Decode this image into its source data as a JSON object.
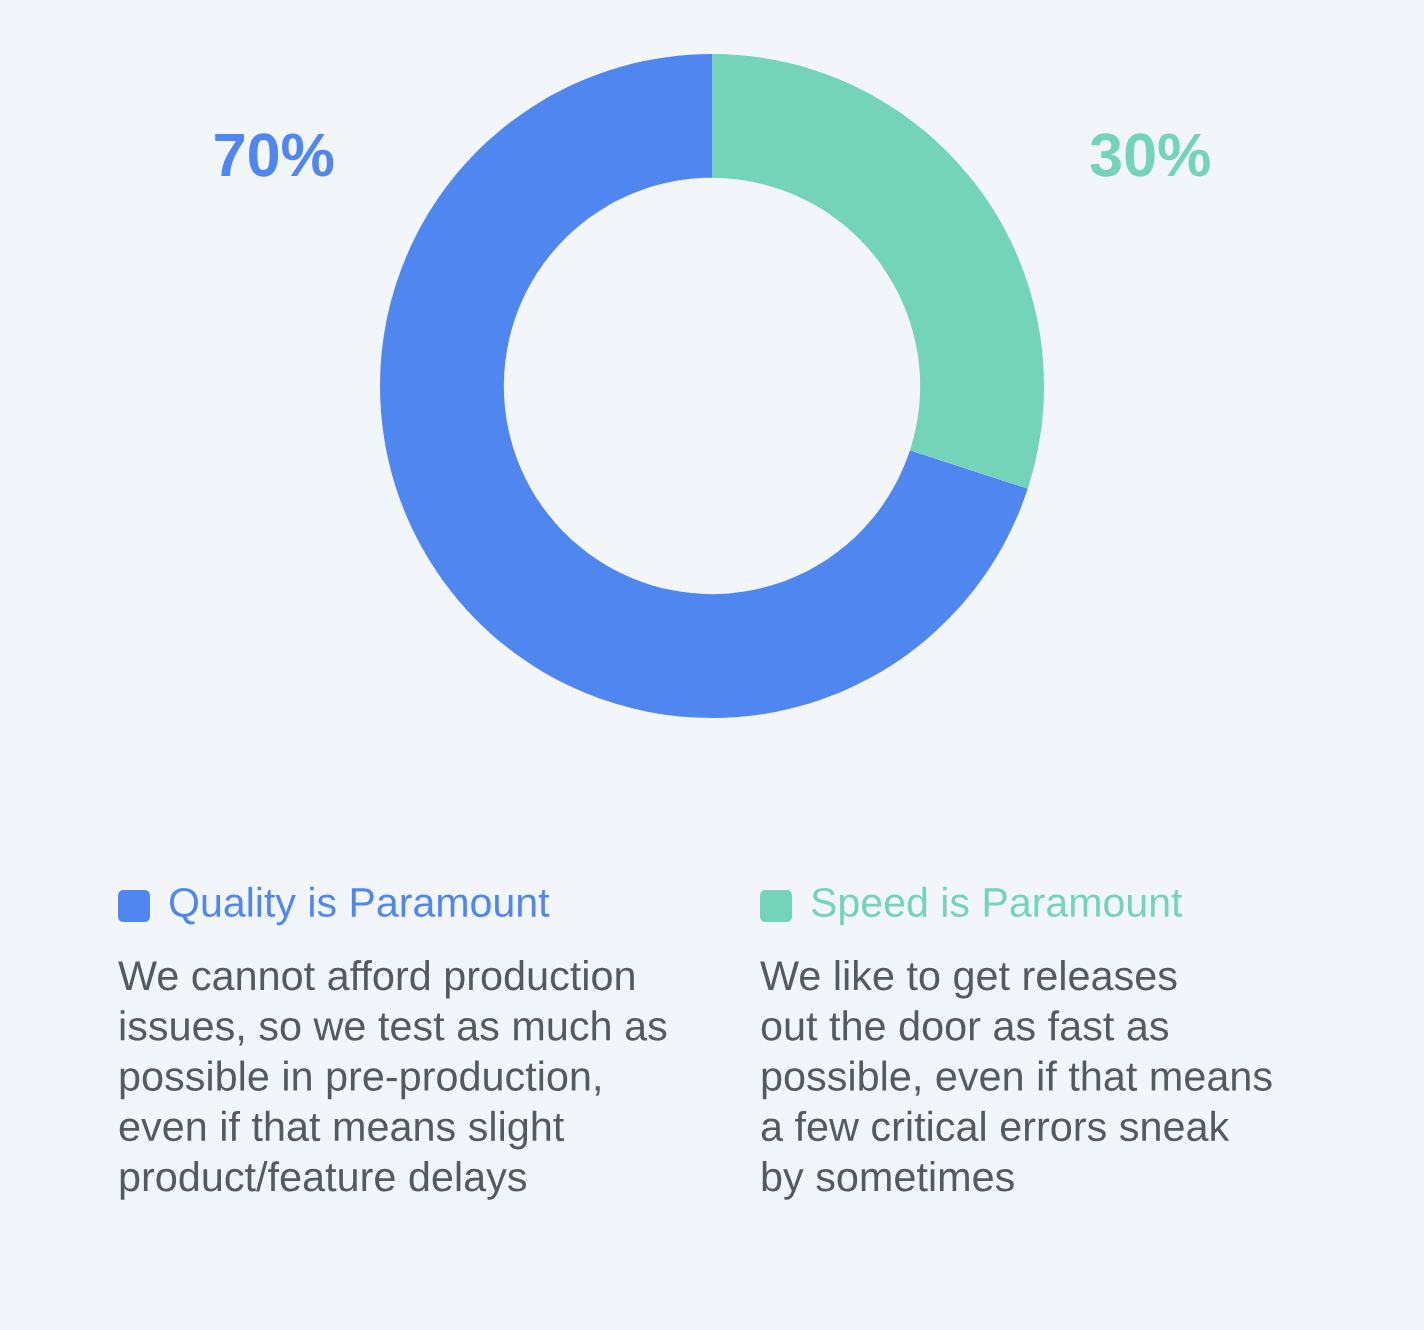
{
  "chart_data": {
    "type": "donut",
    "categories": [
      "Quality is Paramount",
      "Speed is Paramount"
    ],
    "values": [
      70,
      30
    ],
    "colors": [
      "#5086f0",
      "#74d4b8"
    ],
    "value_labels": [
      "70%",
      "30%"
    ],
    "legend": "bottom",
    "annotations": [
      "We cannot afford production\nissues, so we test as much as\npossible in pre-production,\neven if that means slight\nproduct/feature delays",
      "We like to get releases\nout the door as fast as\npossible, even if that means\na few critical errors sneak\nby sometimes"
    ]
  }
}
